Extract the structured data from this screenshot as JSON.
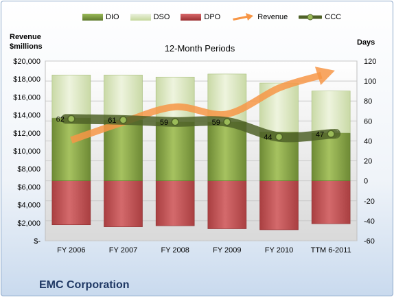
{
  "chart_data": {
    "type": "bar",
    "title": "12-Month Periods",
    "company": "EMC Corporation",
    "categories": [
      "FY 2006",
      "FY 2007",
      "FY 2008",
      "FY 2009",
      "FY 2010",
      "TTM 6-2011"
    ],
    "left_axis": {
      "label_line1": "Revenue",
      "label_line2": "$millions",
      "ylim": [
        0,
        20000
      ],
      "ticks": [
        "$-",
        "$2,000",
        "$4,000",
        "$6,000",
        "$8,000",
        "$10,000",
        "$12,000",
        "$14,000",
        "$16,000",
        "$18,000",
        "$20,000"
      ]
    },
    "right_axis": {
      "label": "Days",
      "ylim": [
        -60,
        120
      ],
      "ticks": [
        "-60",
        "-40",
        "-20",
        "0",
        "20",
        "40",
        "60",
        "80",
        "100",
        "120"
      ]
    },
    "series": [
      {
        "name": "DIO",
        "axis": "right",
        "values": [
          63,
          61,
          59,
          59,
          49,
          48
        ]
      },
      {
        "name": "DSO",
        "axis": "right",
        "values": [
          43,
          45,
          45,
          48,
          49,
          42
        ]
      },
      {
        "name": "DPO",
        "axis": "right",
        "values": [
          -44,
          -46,
          -45,
          -48,
          -49,
          -43
        ]
      },
      {
        "name": "Revenue",
        "axis": "left",
        "values": [
          11200,
          13200,
          14900,
          14100,
          17000,
          18800
        ]
      },
      {
        "name": "CCC",
        "axis": "right",
        "values": [
          62,
          61,
          59,
          59,
          44,
          47
        ]
      }
    ],
    "ccc_labels": [
      "62",
      "61",
      "59",
      "59",
      "44",
      "47"
    ],
    "colors": {
      "DIO": "#77933c",
      "DSO": "#d7e4bd",
      "DPO": "#b8494b",
      "Revenue": "#f79646",
      "CCC": "#5a6b3a"
    },
    "grid": true,
    "legend_position": "top"
  }
}
